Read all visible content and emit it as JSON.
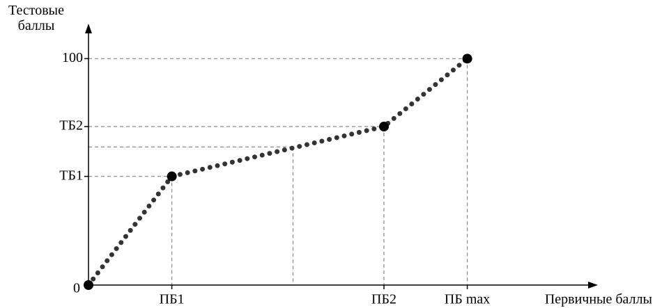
{
  "chart_data": {
    "type": "line",
    "ylabel": "Тестовые баллы",
    "xlabel": "Первичные баллы",
    "x": [
      0,
      22,
      78,
      100
    ],
    "series": [
      {
        "color": "#333333",
        "values": [
          0,
          48,
          70,
          100
        ]
      }
    ],
    "example_point": {
      "x": 54,
      "y": 61
    },
    "xlim": [
      0,
      133
    ],
    "ylim": [
      0,
      113
    ],
    "xticks": [
      {
        "value": 22,
        "label": "ПБ1"
      },
      {
        "value": 78,
        "label": "ПБ2"
      },
      {
        "value": 100,
        "label": "ПБ max"
      }
    ],
    "yticks": [
      0,
      {
        "value": 48,
        "label": "ТБ1"
      },
      {
        "value": 70,
        "label": "ТБ2"
      },
      100
    ]
  }
}
